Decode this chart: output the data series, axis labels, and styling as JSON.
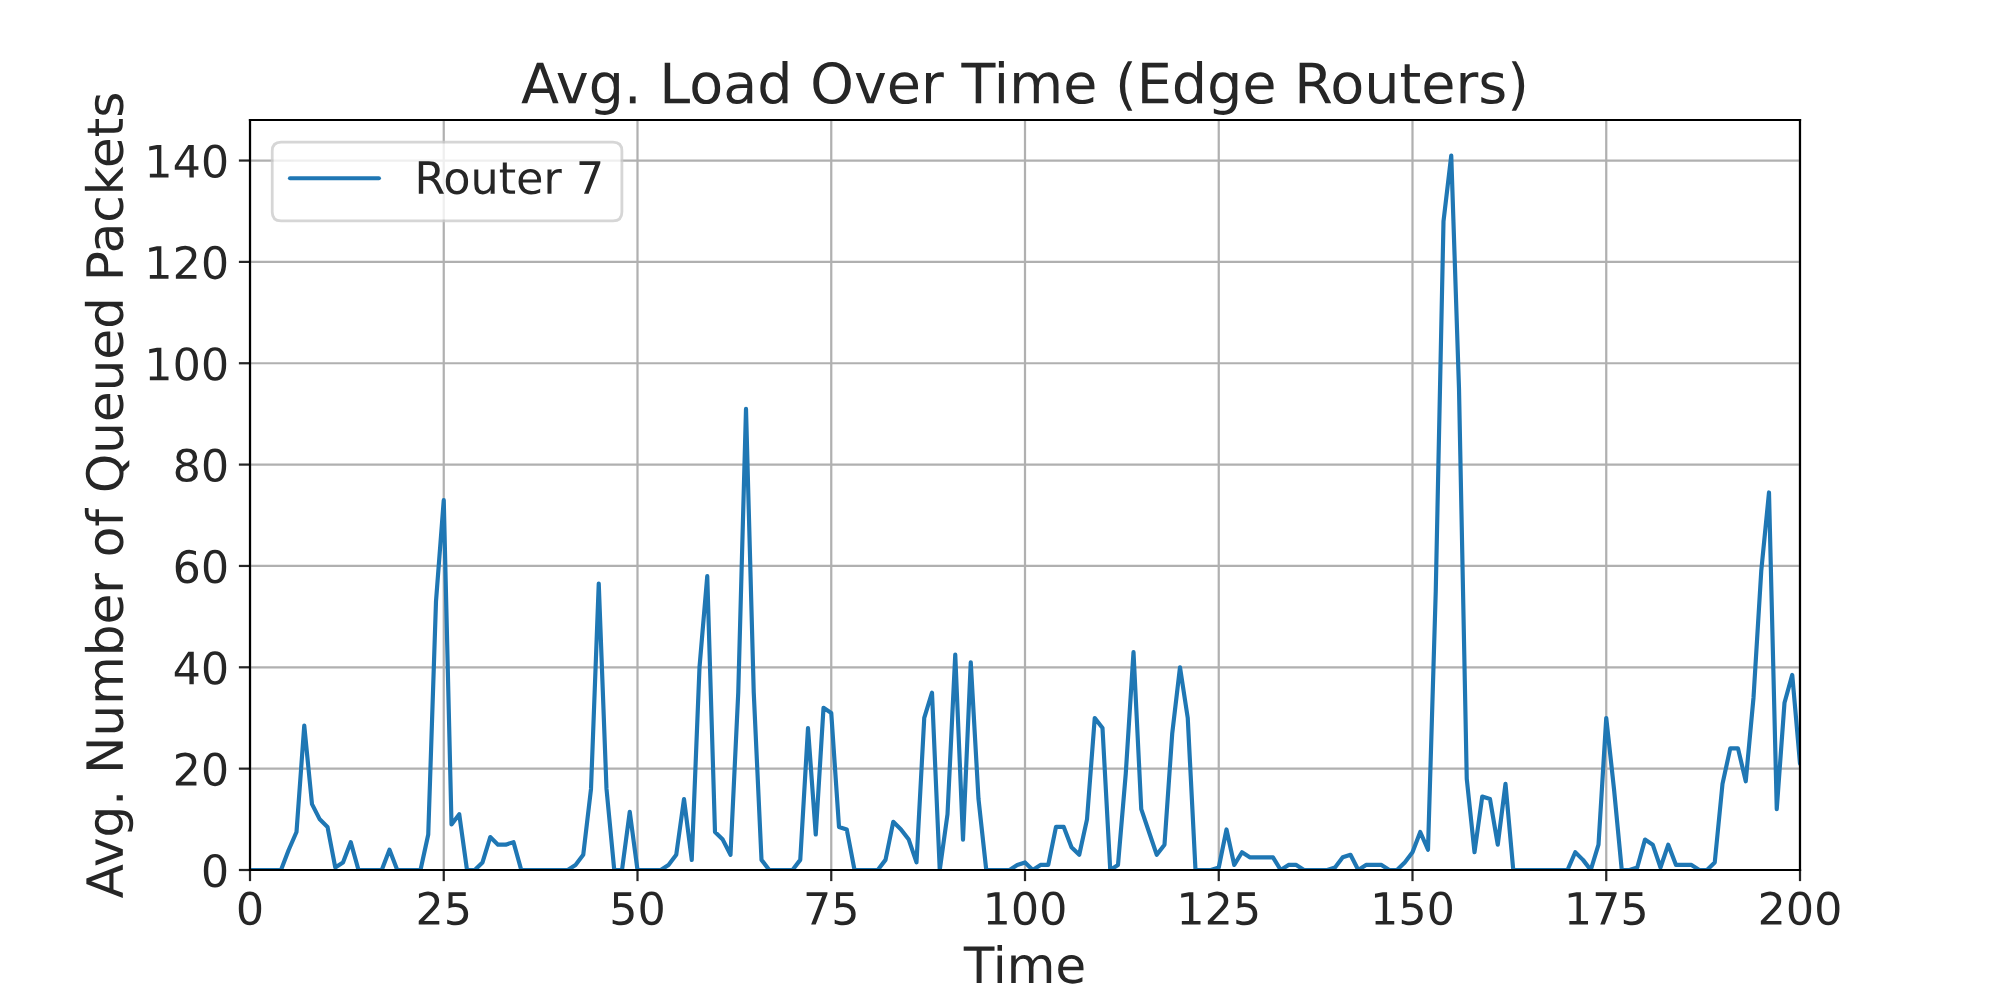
{
  "chart_data": {
    "type": "line",
    "title": "Avg. Load Over Time (Edge Routers)",
    "xlabel": "Time",
    "ylabel": "Avg. Number of Queued Packets",
    "x": [
      0,
      1,
      2,
      3,
      4,
      5,
      6,
      7,
      8,
      9,
      10,
      11,
      12,
      13,
      14,
      15,
      16,
      17,
      18,
      19,
      20,
      21,
      22,
      23,
      24,
      25,
      26,
      27,
      28,
      29,
      30,
      31,
      32,
      33,
      34,
      35,
      36,
      37,
      38,
      39,
      40,
      41,
      42,
      43,
      44,
      45,
      46,
      47,
      48,
      49,
      50,
      51,
      52,
      53,
      54,
      55,
      56,
      57,
      58,
      59,
      60,
      61,
      62,
      63,
      64,
      65,
      66,
      67,
      68,
      69,
      70,
      71,
      72,
      73,
      74,
      75,
      76,
      77,
      78,
      79,
      80,
      81,
      82,
      83,
      84,
      85,
      86,
      87,
      88,
      89,
      90,
      91,
      92,
      93,
      94,
      95,
      96,
      97,
      98,
      99,
      100,
      101,
      102,
      103,
      104,
      105,
      106,
      107,
      108,
      109,
      110,
      111,
      112,
      113,
      114,
      115,
      116,
      117,
      118,
      119,
      120,
      121,
      122,
      123,
      124,
      125,
      126,
      127,
      128,
      129,
      130,
      131,
      132,
      133,
      134,
      135,
      136,
      137,
      138,
      139,
      140,
      141,
      142,
      143,
      144,
      145,
      146,
      147,
      148,
      149,
      150,
      151,
      152,
      153,
      154,
      155,
      156,
      157,
      158,
      159,
      160,
      161,
      162,
      163,
      164,
      165,
      166,
      167,
      168,
      169,
      170,
      171,
      172,
      173,
      174,
      175,
      176,
      177,
      178,
      179,
      180,
      181,
      182,
      183,
      184,
      185,
      186,
      187,
      188,
      189,
      190,
      191,
      192,
      193,
      194,
      195,
      196,
      197,
      198,
      199,
      200
    ],
    "series": [
      {
        "name": "Router 7",
        "color": "#1f77b4",
        "values": [
          0,
          0,
          0,
          0,
          0,
          4,
          7.5,
          28.5,
          13,
          10,
          8.5,
          0.5,
          1.5,
          5.5,
          0,
          0,
          0,
          0,
          4,
          0,
          0,
          0,
          0,
          7,
          53,
          73,
          9,
          11,
          0,
          0,
          1.5,
          6.5,
          5,
          5,
          5.5,
          0,
          0,
          0,
          0,
          0,
          0,
          0,
          1,
          3,
          16,
          56.5,
          16,
          0,
          0,
          11.5,
          0,
          0,
          0,
          0,
          1,
          3,
          14,
          2,
          40,
          58,
          7.5,
          6,
          3,
          35,
          91,
          35,
          2,
          0,
          0,
          0,
          0,
          2,
          28,
          7,
          32,
          31,
          8.5,
          8,
          0,
          0,
          0,
          0,
          2,
          9.5,
          8,
          6,
          1.5,
          30,
          35,
          0,
          11,
          42.5,
          6,
          41,
          14,
          0,
          0,
          0,
          0,
          1,
          1.5,
          0,
          1,
          1,
          8.5,
          8.5,
          4.5,
          3,
          10,
          30,
          28,
          0,
          1,
          19,
          43,
          12,
          7.5,
          3,
          5,
          27,
          40,
          30,
          0,
          0,
          0,
          0.5,
          8,
          1,
          3.5,
          2.5,
          2.5,
          2.5,
          2.5,
          0,
          1,
          1,
          0,
          0,
          0,
          0,
          0.5,
          2.5,
          3,
          0,
          1,
          1,
          1,
          0,
          0,
          1.5,
          3.5,
          7.5,
          4,
          55,
          128,
          141,
          95,
          18,
          3.5,
          14.5,
          14,
          5,
          17,
          0,
          0,
          0,
          0,
          0,
          0,
          0,
          0,
          3.5,
          2,
          0,
          5,
          30,
          16,
          0,
          0,
          0.5,
          6,
          5,
          0.5,
          5,
          1,
          1,
          1,
          0,
          0,
          1.5,
          17,
          24,
          24,
          17.5,
          34,
          59,
          74.5,
          12,
          33,
          38.5,
          21
        ]
      }
    ],
    "xlim": [
      0,
      200
    ],
    "ylim": [
      0,
      148
    ],
    "xticks": [
      0,
      25,
      50,
      75,
      100,
      125,
      150,
      175,
      200
    ],
    "yticks": [
      0,
      20,
      40,
      60,
      80,
      100,
      120,
      140
    ],
    "grid": true,
    "legend": "top left",
    "line_style": "solid",
    "marker": "none"
  }
}
